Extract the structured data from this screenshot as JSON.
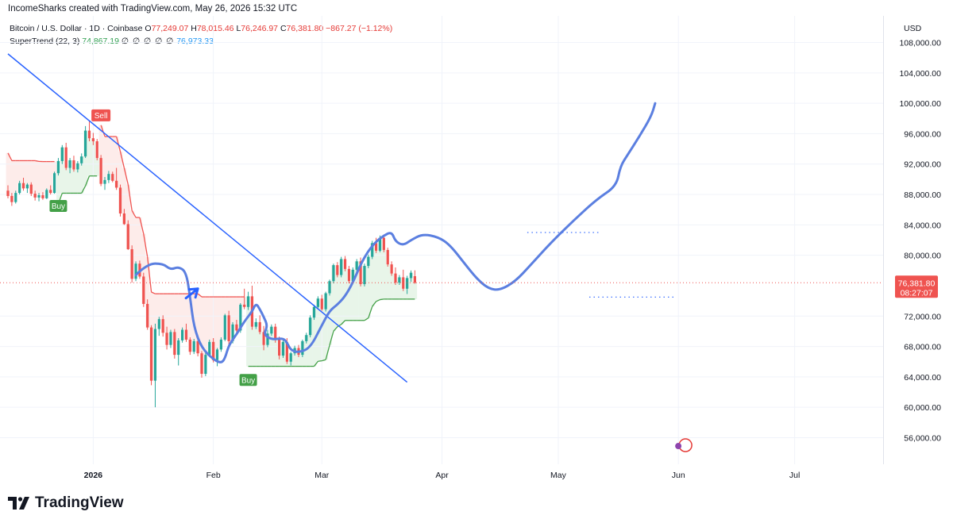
{
  "header": {
    "attribution": "IncomeSharks created with TradingView.com, May 26, 2026 15:32 UTC"
  },
  "legend": {
    "symbol": "Bitcoin / U.S. Dollar · 1D · Coinbase",
    "open_label": "O",
    "open": "77,249.07",
    "high_label": "H",
    "high": "78,015.46",
    "low_label": "L",
    "low": "76,246.97",
    "close_label": "C",
    "close": "76,381.80",
    "change": "−867.27 (−1.12%)",
    "indicator": "SuperTrend (22, 3)",
    "indicator_value_1": "74,867.19",
    "indicator_zeros": "∅ ∅ ∅ ∅ ∅",
    "indicator_value_2": "76,973.33"
  },
  "price_axis": {
    "currency": "USD",
    "labels": [
      "108,000.00",
      "104,000.00",
      "100,000.00",
      "96,000.00",
      "92,000.00",
      "88,000.00",
      "84,000.00",
      "80,000.00",
      "72,000.00",
      "68,000.00",
      "64,000.00",
      "60,000.00",
      "56,000.00"
    ],
    "last_price": "76,381.80",
    "countdown": "08:27:07"
  },
  "branding": {
    "logo_text": "TradingView"
  },
  "colors": {
    "up": "#26a69a",
    "down": "#ef5350",
    "trendline": "#2962ff",
    "projection": "#5b7fe0",
    "supertrend_up": "#43a047",
    "supertrend_down": "#ef5350",
    "fill_up": "#e8f5e9",
    "fill_down": "#fdecea"
  },
  "chart_data": {
    "type": "candlestick",
    "symbol": "Bitcoin / U.S. Dollar",
    "timeframe": "1D",
    "x_labels": [
      "2026",
      "Feb",
      "Mar",
      "Apr",
      "May",
      "Jun",
      "Jul"
    ],
    "y_range": [
      52500,
      111500
    ],
    "ohlc": [
      [
        88500,
        89200,
        87500,
        87800
      ],
      [
        87800,
        88200,
        86500,
        87000
      ],
      [
        87000,
        88500,
        86800,
        88200
      ],
      [
        88200,
        89800,
        88000,
        89500
      ],
      [
        89500,
        90200,
        88500,
        88800
      ],
      [
        88800,
        89500,
        88200,
        89300
      ],
      [
        89300,
        89600,
        87800,
        88100
      ],
      [
        88100,
        88500,
        87200,
        87600
      ],
      [
        87600,
        88200,
        87100,
        87900
      ],
      [
        87900,
        88300,
        87300,
        87500
      ],
      [
        87500,
        88800,
        87400,
        88600
      ],
      [
        88600,
        89200,
        88000,
        88200
      ],
      [
        88200,
        91000,
        88100,
        90800
      ],
      [
        90800,
        92800,
        90500,
        92400
      ],
      [
        92400,
        94500,
        92000,
        94200
      ],
      [
        94200,
        94800,
        91200,
        91500
      ],
      [
        91500,
        92800,
        90800,
        92500
      ],
      [
        92500,
        93100,
        91000,
        91300
      ],
      [
        91300,
        92400,
        90900,
        92100
      ],
      [
        92100,
        93400,
        91800,
        93000
      ],
      [
        93000,
        97000,
        92800,
        96400
      ],
      [
        96400,
        97600,
        95000,
        95400
      ],
      [
        95400,
        96100,
        94500,
        95000
      ],
      [
        95000,
        95300,
        92500,
        92800
      ],
      [
        92800,
        93200,
        89100,
        89400
      ],
      [
        89400,
        90300,
        88600,
        89900
      ],
      [
        89900,
        91100,
        89500,
        90700
      ],
      [
        90700,
        91000,
        89600,
        89800
      ],
      [
        89800,
        91500,
        88600,
        88900
      ],
      [
        88900,
        89300,
        85100,
        85500
      ],
      [
        85500,
        86100,
        84000,
        84100
      ],
      [
        84100,
        84600,
        80700,
        80800
      ],
      [
        80800,
        81300,
        76400,
        76900
      ],
      [
        76900,
        79200,
        76600,
        78900
      ],
      [
        78900,
        79300,
        76900,
        77200
      ],
      [
        77200,
        77700,
        73200,
        73600
      ],
      [
        73600,
        74200,
        70200,
        70500
      ],
      [
        70500,
        70800,
        62900,
        63500
      ],
      [
        63500,
        71000,
        60000,
        70300
      ],
      [
        70300,
        71900,
        69400,
        71600
      ],
      [
        71600,
        72100,
        69300,
        69800
      ],
      [
        69800,
        70600,
        67600,
        68200
      ],
      [
        68200,
        70200,
        67800,
        69900
      ],
      [
        69900,
        70300,
        66400,
        66900
      ],
      [
        66900,
        69100,
        65500,
        68800
      ],
      [
        68800,
        70500,
        68500,
        70200
      ],
      [
        70200,
        71000,
        68600,
        68900
      ],
      [
        68900,
        69200,
        66900,
        67300
      ],
      [
        67300,
        69000,
        67000,
        68700
      ],
      [
        68700,
        69000,
        66700,
        67100
      ],
      [
        67100,
        67400,
        63900,
        64400
      ],
      [
        64400,
        67200,
        64100,
        66900
      ],
      [
        66900,
        68900,
        66700,
        68600
      ],
      [
        68600,
        69100,
        65900,
        66200
      ],
      [
        66200,
        67800,
        65400,
        67600
      ],
      [
        67600,
        69200,
        67300,
        68900
      ],
      [
        68900,
        72300,
        68700,
        72100
      ],
      [
        72100,
        72700,
        68200,
        68700
      ],
      [
        68700,
        71200,
        68400,
        70900
      ],
      [
        70900,
        71500,
        69600,
        70100
      ],
      [
        70100,
        73700,
        69800,
        73500
      ],
      [
        73500,
        75600,
        72900,
        73200
      ],
      [
        73200,
        75200,
        72800,
        74600
      ],
      [
        74600,
        76000,
        70200,
        70600
      ],
      [
        70600,
        71700,
        70300,
        71200
      ],
      [
        71200,
        72100,
        69600,
        69900
      ],
      [
        69900,
        70700,
        67500,
        68200
      ],
      [
        68200,
        70200,
        67900,
        69700
      ],
      [
        69700,
        70900,
        69400,
        70600
      ],
      [
        70600,
        71000,
        68500,
        68900
      ],
      [
        68900,
        69300,
        66300,
        66800
      ],
      [
        66800,
        68900,
        66500,
        68600
      ],
      [
        68600,
        69100,
        65700,
        66000
      ],
      [
        66000,
        67300,
        65500,
        67100
      ],
      [
        67100,
        68100,
        66800,
        67800
      ],
      [
        67800,
        68200,
        66600,
        66900
      ],
      [
        66900,
        68900,
        66600,
        68700
      ],
      [
        68700,
        69800,
        68400,
        69500
      ],
      [
        69500,
        72100,
        69200,
        71800
      ],
      [
        71800,
        73500,
        71500,
        73200
      ],
      [
        73200,
        74600,
        72900,
        74300
      ],
      [
        74300,
        74800,
        72700,
        72900
      ],
      [
        72900,
        75200,
        72600,
        75000
      ],
      [
        75000,
        76800,
        74700,
        76600
      ],
      [
        76600,
        78900,
        76300,
        78700
      ],
      [
        78700,
        79100,
        77100,
        77400
      ],
      [
        77400,
        79800,
        77100,
        79500
      ],
      [
        79500,
        79900,
        77900,
        78200
      ],
      [
        78200,
        78600,
        76300,
        76600
      ],
      [
        76600,
        78400,
        76300,
        78100
      ],
      [
        78100,
        79500,
        77800,
        79200
      ],
      [
        79200,
        79700,
        75900,
        76200
      ],
      [
        76200,
        78900,
        75900,
        78600
      ],
      [
        78600,
        80100,
        78300,
        79800
      ],
      [
        79800,
        81900,
        79500,
        81600
      ],
      [
        81600,
        82300,
        80300,
        80600
      ],
      [
        80600,
        82600,
        80400,
        82300
      ],
      [
        82300,
        82700,
        80400,
        80700
      ],
      [
        80700,
        81000,
        78500,
        78800
      ],
      [
        78800,
        79200,
        77300,
        77600
      ],
      [
        77600,
        78400,
        76100,
        76400
      ],
      [
        76400,
        77400,
        76100,
        77100
      ],
      [
        77100,
        78100,
        75300,
        75600
      ],
      [
        75600,
        77300,
        74900,
        77000
      ],
      [
        77000,
        78000,
        76500,
        77700
      ],
      [
        77249.07,
        78015.46,
        76246.97,
        76381.8
      ]
    ],
    "supertrend": {
      "parameters": [
        22,
        3
      ],
      "up_value": 74867.19,
      "down_value": 76973.33,
      "signals": [
        {
          "label": "Buy",
          "price": 87900
        },
        {
          "label": "Sell",
          "price": 97000
        },
        {
          "label": "Buy",
          "price": 65000
        }
      ]
    },
    "trendline": {
      "from": [
        0,
        106500
      ],
      "to": [
        103,
        63300
      ]
    },
    "projection_path": [
      [
        33,
        77400
      ],
      [
        36,
        78900
      ],
      [
        40,
        78900
      ],
      [
        42,
        78100
      ],
      [
        44,
        78500
      ],
      [
        46,
        77800
      ],
      [
        47,
        74500
      ],
      [
        48,
        70500
      ],
      [
        50,
        67800
      ],
      [
        53,
        66300
      ],
      [
        55,
        65800
      ],
      [
        56,
        66400
      ],
      [
        57,
        68200
      ],
      [
        59,
        69600
      ],
      [
        61,
        71300
      ],
      [
        63,
        72600
      ],
      [
        64,
        73700
      ],
      [
        65,
        72900
      ],
      [
        66,
        71900
      ],
      [
        67,
        70700
      ],
      [
        66,
        69600
      ],
      [
        68,
        68900
      ],
      [
        71,
        69100
      ],
      [
        72,
        68500
      ],
      [
        73,
        67500
      ],
      [
        75,
        67200
      ],
      [
        78,
        67800
      ],
      [
        81,
        70800
      ],
      [
        83,
        72700
      ],
      [
        85,
        73500
      ],
      [
        87,
        74600
      ],
      [
        89,
        76400
      ],
      [
        91,
        78800
      ],
      [
        93,
        80600
      ],
      [
        95,
        81800
      ],
      [
        97,
        82600
      ],
      [
        99,
        83100
      ],
      [
        100,
        81800
      ],
      [
        102,
        81300
      ],
      [
        104,
        82000
      ],
      [
        107,
        82800
      ],
      [
        111,
        82400
      ],
      [
        114,
        81400
      ],
      [
        118,
        78800
      ],
      [
        121,
        76900
      ],
      [
        124,
        75600
      ],
      [
        127,
        75400
      ],
      [
        131,
        76600
      ],
      [
        135,
        78800
      ],
      [
        140,
        81600
      ],
      [
        146,
        84600
      ],
      [
        152,
        87400
      ],
      [
        157,
        89100
      ],
      [
        158,
        91700
      ],
      [
        160,
        93300
      ],
      [
        163,
        95700
      ],
      [
        166,
        98300
      ],
      [
        167,
        100000
      ]
    ]
  }
}
